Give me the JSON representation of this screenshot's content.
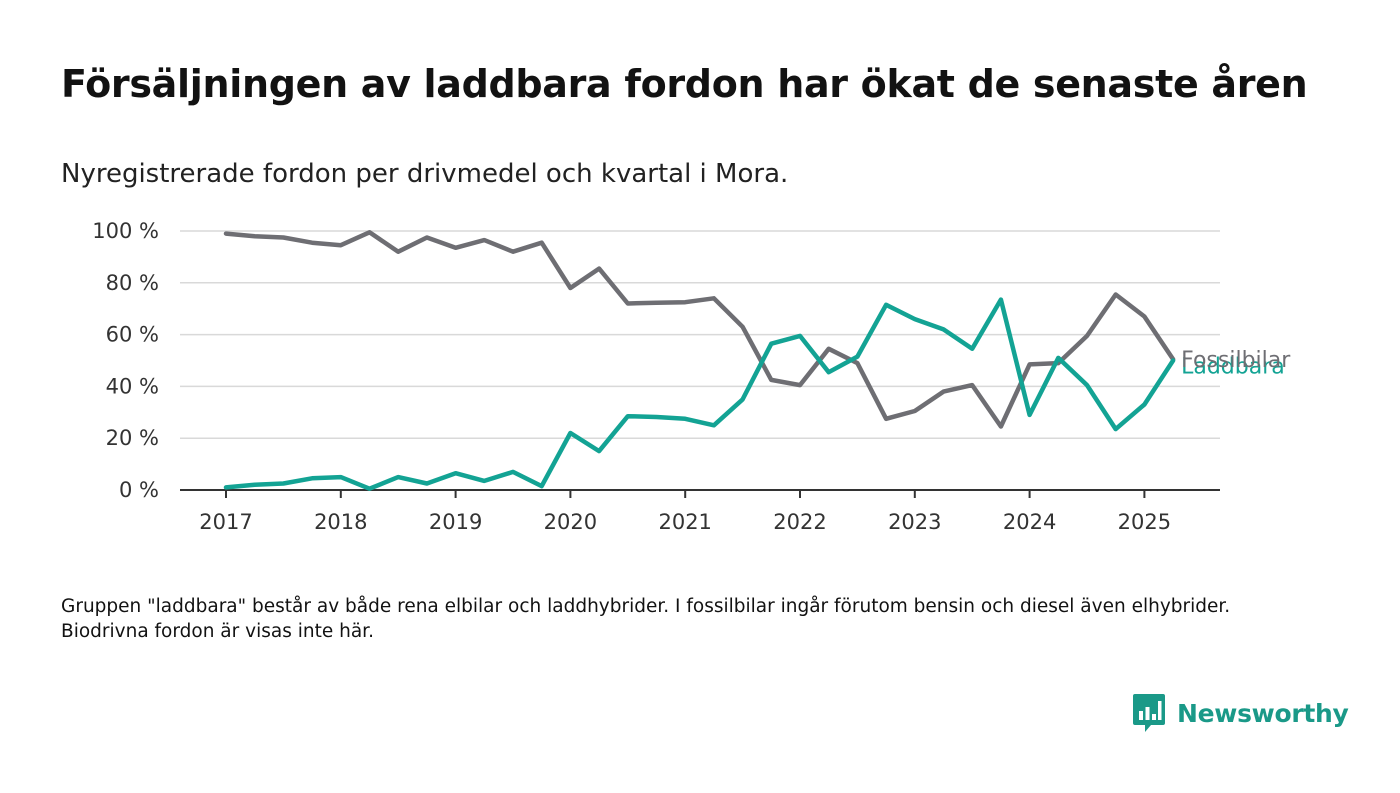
{
  "title": "Försäljningen av laddbara fordon har ökat de senaste åren",
  "subtitle": "Nyregistrerade fordon per drivmedel och kvartal i Mora.",
  "note": "Gruppen \"laddbara\" består av både rena elbilar och laddhybrider. I fossilbilar ingår förutom bensin och diesel även elhybrider. Biodrivna fordon är visas inte här.",
  "brand": {
    "name": "Newsworthy",
    "icon": "newsworthy-logo-icon",
    "color": "#1a9988"
  },
  "chart_data": {
    "type": "line",
    "title": "",
    "xlabel": "",
    "ylabel": "",
    "x": [
      "2017-Q1",
      "2017-Q2",
      "2017-Q3",
      "2017-Q4",
      "2018-Q1",
      "2018-Q2",
      "2018-Q3",
      "2018-Q4",
      "2019-Q1",
      "2019-Q2",
      "2019-Q3",
      "2019-Q4",
      "2020-Q1",
      "2020-Q2",
      "2020-Q3",
      "2020-Q4",
      "2021-Q1",
      "2021-Q2",
      "2021-Q3",
      "2021-Q4",
      "2022-Q1",
      "2022-Q2",
      "2022-Q3",
      "2022-Q4",
      "2023-Q1",
      "2023-Q2",
      "2023-Q3",
      "2023-Q4",
      "2024-Q1",
      "2024-Q2",
      "2024-Q3",
      "2024-Q4",
      "2025-Q1",
      "2025-Q2"
    ],
    "xtick_labels": [
      "2017",
      "2018",
      "2019",
      "2020",
      "2021",
      "2022",
      "2023",
      "2024",
      "2025"
    ],
    "ytick_labels": [
      "0 %",
      "20 %",
      "40 %",
      "60 %",
      "80 %",
      "100 %"
    ],
    "ylim": [
      0,
      100
    ],
    "grid": true,
    "series": [
      {
        "name": "Fossilbilar",
        "color": "#6e6e73",
        "values": [
          99,
          98,
          97.5,
          95.5,
          94.5,
          99.5,
          92,
          97.5,
          93.5,
          96.5,
          92,
          95.5,
          78,
          85.5,
          72,
          72.3,
          72.5,
          74,
          63,
          42.5,
          40.5,
          54.5,
          49,
          27.5,
          30.5,
          38,
          40.5,
          24.5,
          48.5,
          49,
          59.5,
          75.5,
          67,
          50.5
        ]
      },
      {
        "name": "Laddbara",
        "color": "#13a394",
        "values": [
          1,
          2,
          2.5,
          4.5,
          5,
          0.5,
          5,
          2.5,
          6.5,
          3.5,
          7,
          1.5,
          22,
          15,
          28.5,
          28.2,
          27.5,
          25,
          35,
          56.5,
          59.5,
          45.5,
          51.5,
          71.5,
          66,
          62,
          54.5,
          73.5,
          29,
          51,
          40.5,
          23.5,
          33,
          50
        ]
      }
    ]
  }
}
